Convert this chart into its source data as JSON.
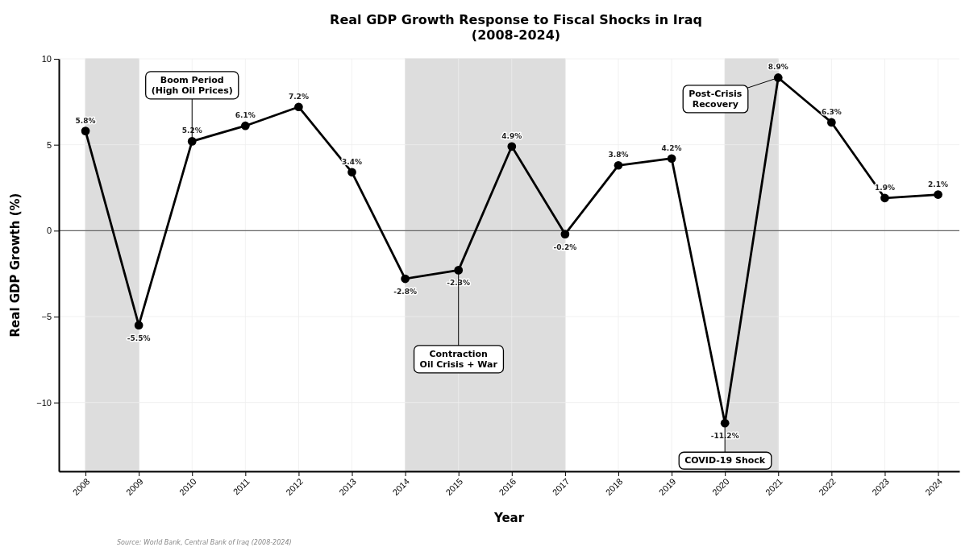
{
  "chart_data": {
    "type": "line",
    "title": "Real GDP Growth Response to Fiscal Shocks in Iraq\n(2008-2024)",
    "xlabel": "Year",
    "ylabel": "Real GDP Growth (%)",
    "x": [
      2008,
      2009,
      2010,
      2011,
      2012,
      2013,
      2014,
      2015,
      2016,
      2017,
      2018,
      2019,
      2020,
      2021,
      2022,
      2023,
      2024
    ],
    "series": [
      {
        "color": "#000000",
        "values": [
          5.8,
          -5.5,
          5.2,
          6.1,
          7.2,
          3.4,
          -2.8,
          -2.3,
          4.9,
          -0.2,
          3.8,
          4.2,
          -11.2,
          8.9,
          6.3,
          1.9,
          2.1
        ],
        "value_labels": [
          "5.8%",
          "-5.5%",
          "5.2%",
          "6.1%",
          "7.2%",
          "3.4%",
          "-2.8%",
          "-2.3%",
          "4.9%",
          "-0.2%",
          "3.8%",
          "4.2%",
          "-11.2%",
          "8.9%",
          "6.3%",
          "1.9%",
          "2.1%"
        ]
      }
    ],
    "xlim": [
      2007.5,
      2024.4
    ],
    "xticks": [
      2008,
      2009,
      2010,
      2011,
      2012,
      2013,
      2014,
      2015,
      2016,
      2017,
      2018,
      2019,
      2020,
      2021,
      2022,
      2023,
      2024
    ],
    "ylim": [
      -14,
      10
    ],
    "yticks": [
      {
        "value": -10,
        "label": "−10"
      },
      {
        "value": -5,
        "label": "−5"
      },
      0,
      5,
      10
    ],
    "grid": true,
    "marker": "circle",
    "line_style": "solid",
    "ref_lines": [
      {
        "axis": "y",
        "value": 0,
        "color": "#666666"
      }
    ],
    "bands": [
      {
        "axis": "x",
        "from": 2008,
        "to": 2009,
        "color": "#dddddd"
      },
      {
        "axis": "x",
        "from": 2014,
        "to": 2017,
        "color": "#dddddd"
      },
      {
        "axis": "x",
        "from": 2020,
        "to": 2021,
        "color": "#dddddd"
      }
    ],
    "annotations": [
      {
        "text": "Boom Period\n(High Oil Prices)",
        "x": 2010,
        "y": 5.2
      },
      {
        "text": "Contraction\nOil Crisis + War",
        "x": 2015,
        "y": -2.3
      },
      {
        "text": "COVID-19 Shock",
        "x": 2020,
        "y": -11.2
      },
      {
        "text": "Post-Crisis\nRecovery",
        "x": 2021,
        "y": 8.9
      },
      "Source: World Bank, Central Bank of Iraq (2008-2024)"
    ]
  }
}
